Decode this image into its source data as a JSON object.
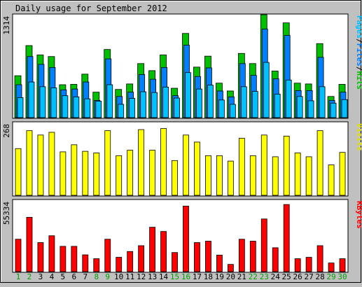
{
  "chart_data": {
    "type": "bar",
    "title": "Daily usage for September 2012",
    "days": [
      "1",
      "2",
      "3",
      "4",
      "5",
      "6",
      "7",
      "8",
      "9",
      "10",
      "11",
      "12",
      "13",
      "14",
      "15",
      "16",
      "17",
      "18",
      "19",
      "20",
      "21",
      "22",
      "23",
      "24",
      "25",
      "26",
      "27",
      "28",
      "29",
      "30"
    ],
    "weekend_days": [
      "1",
      "2",
      "8",
      "9",
      "15",
      "16",
      "22",
      "23",
      "29",
      "30"
    ],
    "panels": [
      {
        "name": "hits-files-pages",
        "ymax_label": "1314",
        "ymax": 1314,
        "legend": [
          "Pages",
          "/",
          "Files",
          "/",
          "Hits"
        ],
        "legend_colors": [
          "#00c0ff",
          "#000000",
          "#0080ff",
          "#000000",
          "#00c000"
        ],
        "series": [
          {
            "name": "Hits",
            "color": "#00c000",
            "values": [
              535,
              920,
              800,
              780,
              420,
              425,
              555,
              325,
              870,
              360,
              430,
              690,
              600,
              800,
              375,
              1075,
              645,
              785,
              440,
              340,
              820,
              690,
              1314,
              595,
              1210,
              440,
              430,
              945,
              270,
              425
            ]
          },
          {
            "name": "Files",
            "color": "#0080ff",
            "values": [
              420,
              780,
              680,
              640,
              355,
              365,
              455,
              220,
              750,
              270,
              325,
              550,
              490,
              640,
              280,
              925,
              525,
              635,
              340,
              265,
              690,
              540,
              1130,
              495,
              1050,
              345,
              345,
              770,
              220,
              325
            ]
          },
          {
            "name": "Pages",
            "color": "#00c0ff",
            "values": [
              255,
              455,
              395,
              380,
              280,
              265,
              240,
              210,
              420,
              170,
              245,
              330,
              320,
              390,
              250,
              575,
              365,
              415,
              225,
              170,
              395,
              335,
              705,
              300,
              480,
              270,
              215,
              395,
              185,
              230
            ]
          }
        ]
      },
      {
        "name": "visits",
        "ymax_label": "268",
        "ymax": 268,
        "legend": [
          "Visits"
        ],
        "legend_colors": [
          "#e0e000"
        ],
        "series": [
          {
            "name": "Visits",
            "color": "#ffff00",
            "values": [
              172,
              238,
              222,
              232,
              160,
              186,
              162,
              156,
              238,
              146,
              166,
              242,
              166,
              246,
              128,
              222,
              196,
              146,
              146,
              126,
              210,
              146,
              222,
              142,
              218,
              156,
              142,
              238,
              112,
              158
            ]
          }
        ]
      },
      {
        "name": "kbytes",
        "ymax_label": "55334",
        "ymax": 55334,
        "legend": [
          "KBytes"
        ],
        "legend_colors": [
          "#ff0000"
        ],
        "series": [
          {
            "name": "KBytes",
            "color": "#ff0000",
            "values": [
              25100,
              42100,
              22500,
              27800,
              19600,
              19600,
              13000,
              10000,
              25100,
              11100,
              15600,
              20100,
              34400,
              31100,
              14800,
              50800,
              22500,
              23600,
              12800,
              5600,
              25100,
              23600,
              40800,
              18500,
              52000,
              10000,
              11100,
              20100,
              6700,
              10000
            ]
          }
        ]
      }
    ]
  }
}
